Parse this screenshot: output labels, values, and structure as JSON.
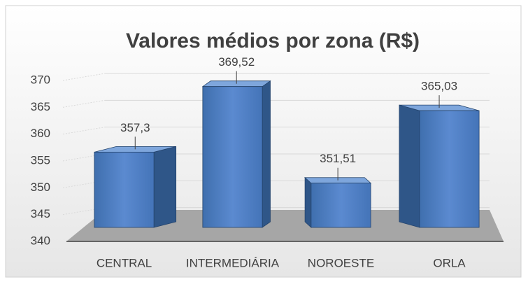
{
  "chart_data": {
    "type": "bar3d",
    "title": "Valores médios por zona (R$)",
    "categories": [
      "CENTRAL",
      "INTERMEDIÁRIA",
      "NOROESTE",
      "ORLA"
    ],
    "values": [
      357.3,
      369.52,
      351.51,
      365.03
    ],
    "value_labels": [
      "357,3",
      "369,52",
      "351,51",
      "365,03"
    ],
    "color": "#4f81bd",
    "ylim": [
      340,
      370
    ],
    "yticks": [
      340,
      345,
      350,
      355,
      360,
      365,
      370
    ],
    "grid": true
  }
}
